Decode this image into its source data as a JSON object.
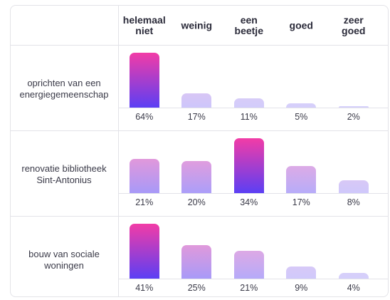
{
  "chart_data": {
    "type": "bar",
    "categories": [
      "helemaal niet",
      "weinig",
      "een beetje",
      "goed",
      "zeer goed"
    ],
    "series": [
      {
        "name": "oprichten van een energiegemeenschap",
        "values": [
          64,
          17,
          11,
          5,
          2
        ],
        "value_labels": [
          "64%",
          "17%",
          "11%",
          "5%",
          "2%"
        ]
      },
      {
        "name": "renovatie bibliotheek Sint-Antonius",
        "values": [
          21,
          20,
          34,
          17,
          8
        ],
        "value_labels": [
          "21%",
          "20%",
          "34%",
          "17%",
          "8%"
        ]
      },
      {
        "name": "bouw van sociale woningen",
        "values": [
          41,
          25,
          21,
          9,
          4
        ],
        "value_labels": [
          "41%",
          "25%",
          "21%",
          "9%",
          "4%"
        ]
      }
    ],
    "gradient": [
      "#f23ca6",
      "#5b3ff4"
    ],
    "pale_color": "#d6d0fb"
  }
}
